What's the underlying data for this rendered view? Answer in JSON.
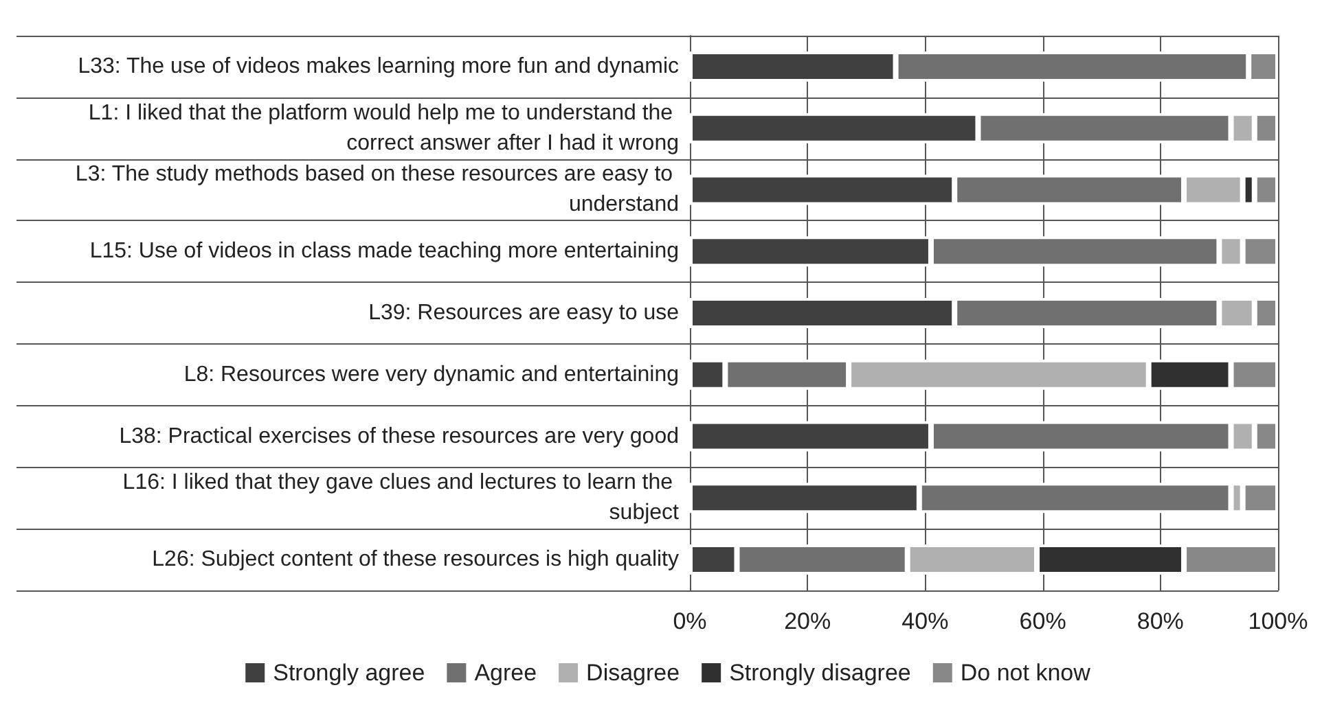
{
  "chart_data": {
    "type": "bar",
    "orientation": "horizontal",
    "stacked": true,
    "categories": [
      "L33: The use of videos makes learning more fun and dynamic",
      "L1: I liked that the platform would help me to understand the correct answer after I had it wrong",
      "L3: The study methods based on these resources are easy to understand",
      "L15: Use of videos in class made teaching more entertaining",
      "L39: Resources are easy to use",
      "L8: Resources were very dynamic and entertaining",
      "L38: Practical exercises of these resources are very good",
      "L16: I liked that they gave clues and lectures to learn the subject",
      "L26: Subject content of these resources is high quality"
    ],
    "series": [
      {
        "name": "Strongly agree",
        "color": "#404040",
        "values": [
          35,
          49,
          45,
          41,
          45,
          6,
          41,
          39,
          8
        ]
      },
      {
        "name": "Agree",
        "color": "#707070",
        "values": [
          60,
          43,
          39,
          49,
          45,
          21,
          51,
          53,
          29
        ]
      },
      {
        "name": "Disagree",
        "color": "#b0b0b0",
        "values": [
          0,
          4,
          10,
          4,
          6,
          51,
          4,
          2,
          22
        ]
      },
      {
        "name": "Strongly disagree",
        "color": "#303030",
        "values": [
          0,
          0,
          2,
          0,
          0,
          14,
          0,
          0,
          25
        ]
      },
      {
        "name": "Do not know",
        "color": "#888888",
        "values": [
          5,
          4,
          4,
          6,
          4,
          8,
          4,
          6,
          16
        ]
      }
    ],
    "xlim": [
      0,
      100
    ],
    "xticks": [
      {
        "value": 0,
        "label": "0%"
      },
      {
        "value": 20,
        "label": "20%"
      },
      {
        "value": 40,
        "label": "40%"
      },
      {
        "value": 60,
        "label": "60%"
      },
      {
        "value": 80,
        "label": "80%"
      },
      {
        "value": 100,
        "label": "100%"
      }
    ],
    "grid": true,
    "legend": "bottom"
  }
}
